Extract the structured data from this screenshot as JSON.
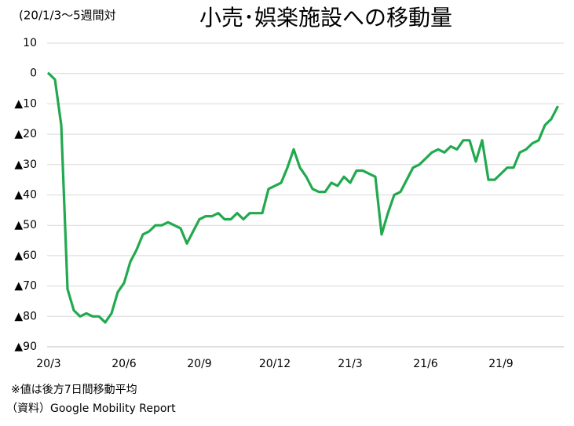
{
  "chart_data": {
    "type": "line",
    "title": "小売･娯楽施設への移動量",
    "subtitle": "(20/1/3～5週間対",
    "notes": [
      "※値は後方7日間移動平均",
      "（資料）Google Mobility Report"
    ],
    "categories": [
      "20/3",
      null,
      null,
      null,
      null,
      null,
      null,
      null,
      null,
      null,
      null,
      null,
      "20/6",
      null,
      null,
      null,
      null,
      null,
      null,
      null,
      null,
      null,
      null,
      null,
      "20/9",
      null,
      null,
      null,
      null,
      null,
      null,
      null,
      null,
      null,
      null,
      null,
      "20/12",
      null,
      null,
      null,
      null,
      null,
      null,
      null,
      null,
      null,
      null,
      null,
      "21/3",
      null,
      null,
      null,
      null,
      null,
      null,
      null,
      null,
      null,
      null,
      null,
      "21/6",
      null,
      null,
      null,
      null,
      null,
      null,
      null,
      null,
      null,
      null,
      null,
      "21/9",
      null,
      null,
      null,
      null,
      null,
      null,
      null,
      null,
      null
    ],
    "values": [
      0,
      -2,
      -17,
      -71,
      -78,
      -80,
      -79,
      -80,
      -80,
      -82,
      -79,
      -72,
      -69,
      -62,
      -58,
      -53,
      -52,
      -50,
      -50,
      -49,
      -50,
      -51,
      -56,
      -52,
      -48,
      -47,
      -47,
      -46,
      -48,
      -48,
      -46,
      -48,
      -46,
      -46,
      -46,
      -38,
      -37,
      -36,
      -31,
      -25,
      -31,
      -34,
      -38,
      -39,
      -39,
      -36,
      -37,
      -34,
      -36,
      -32,
      -32,
      -33,
      -34,
      -53,
      -46,
      -40,
      -39,
      -35,
      -31,
      -30,
      -28,
      -26,
      -25,
      -26,
      -24,
      -25,
      -22,
      -22,
      -29,
      -22,
      -35,
      -35,
      -33,
      -31,
      -31,
      -26,
      -25,
      -23,
      -22,
      -17,
      -15,
      -11
    ],
    "color": "#22a94f",
    "ylim": [
      -90,
      10
    ],
    "yticks": [
      {
        "value": -90,
        "label": "▲90"
      },
      {
        "value": -80,
        "label": "▲80"
      },
      {
        "value": -70,
        "label": "▲70"
      },
      {
        "value": -60,
        "label": "▲60"
      },
      {
        "value": -50,
        "label": "▲50"
      },
      {
        "value": -40,
        "label": "▲40"
      },
      {
        "value": -30,
        "label": "▲30"
      },
      {
        "value": -20,
        "label": "▲20"
      },
      {
        "value": -10,
        "label": "▲10"
      },
      0,
      10
    ],
    "grid": true
  }
}
